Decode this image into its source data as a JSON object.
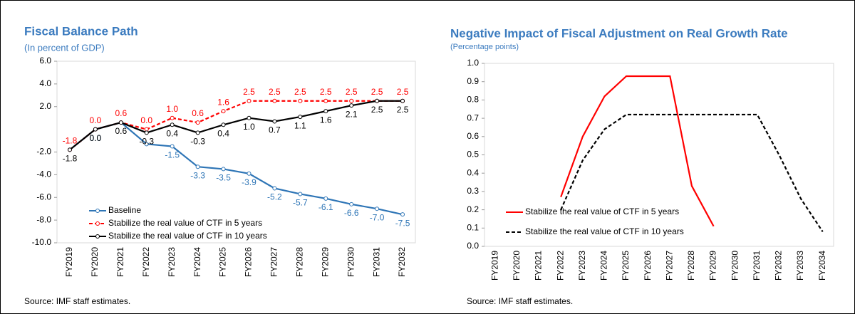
{
  "chart_data": [
    {
      "type": "line",
      "title": "Fiscal Balance Path",
      "subtitle": "(In percent of GDP)",
      "note": "Source: IMF staff estimates.",
      "categories": [
        "FY2019",
        "FY2020",
        "FY2021",
        "FY2022",
        "FY2023",
        "FY2024",
        "FY2025",
        "FY2026",
        "FY2027",
        "FY2028",
        "FY2029",
        "FY2030",
        "FY2031",
        "FY2032"
      ],
      "series": [
        {
          "name": "Baseline",
          "color": "#2e75b6",
          "dash": "solid",
          "marker": true,
          "values": [
            -1.8,
            0.0,
            0.6,
            -1.3,
            -1.5,
            -3.3,
            -3.5,
            -3.9,
            -5.2,
            -5.7,
            -6.1,
            -6.6,
            -7.0,
            -7.5
          ],
          "value_labels": [
            null,
            "0.0",
            null,
            null,
            "-1.5",
            "-3.3",
            "-3.5",
            "-3.9",
            "-5.2",
            "-5.7",
            "-6.1",
            "-6.6",
            "-7.0",
            "-7.5"
          ]
        },
        {
          "name": "Stabilize the real value of CTF in 5 years",
          "color": "#ff0000",
          "dash": "dashed",
          "marker": true,
          "values": [
            -1.8,
            0.0,
            0.6,
            0.0,
            1.0,
            0.6,
            1.6,
            2.5,
            2.5,
            2.5,
            2.5,
            2.5,
            2.5,
            2.5
          ],
          "value_labels": [
            "-1.8",
            "0.0",
            "0.6",
            "0.0",
            "1.0",
            "0.6",
            "1.6",
            "2.5",
            "2.5",
            "2.5",
            "2.5",
            "2.5",
            "2.5",
            "2.5"
          ]
        },
        {
          "name": "Stabilize the real value of CTF in 10 years",
          "color": "#000000",
          "dash": "solid",
          "marker": true,
          "values": [
            -1.8,
            0.0,
            0.6,
            -0.3,
            0.4,
            -0.3,
            0.4,
            1.0,
            0.7,
            1.1,
            1.6,
            2.1,
            2.5,
            2.5
          ],
          "value_labels": [
            "-1.8",
            "0.0",
            "0.6",
            "-0.3",
            "0.4",
            "-0.3",
            "0.4",
            "1.0",
            "0.7",
            "1.1",
            "1.6",
            "2.1",
            "2.5",
            "2.5"
          ]
        }
      ],
      "ylim": [
        -10,
        6
      ],
      "yticks": [
        {
          "value": -10,
          "label": "-10.0"
        },
        {
          "value": -8,
          "label": "-8.0"
        },
        {
          "value": -6,
          "label": "-6.0"
        },
        {
          "value": -4,
          "label": "-4.0"
        },
        {
          "value": -2,
          "label": "-2.0"
        },
        {
          "value": 2,
          "label": "2.0"
        },
        {
          "value": 4,
          "label": "4.0"
        },
        {
          "value": 6,
          "label": "6.0"
        }
      ],
      "legend": "lower left",
      "grid": false
    },
    {
      "type": "line",
      "title": "Negative Impact of Fiscal Adjustment on Real Growth Rate",
      "subtitle": "(Percentage points)",
      "note": "Source: IMF staff estimates.",
      "categories": [
        "FY2019",
        "FY2020",
        "FY2021",
        "FY2022",
        "FY2023",
        "FY2024",
        "FY2025",
        "FY2026",
        "FY2027",
        "FY2028",
        "FY2029",
        "FY2030",
        "FY2031",
        "FY2032",
        "FY2033",
        "FY2034"
      ],
      "series": [
        {
          "name": "Stabilize the real value of CTF in 5 years",
          "color": "#ff0000",
          "dash": "solid",
          "marker": false,
          "values": [
            null,
            null,
            null,
            0.27,
            0.6,
            0.82,
            0.93,
            0.93,
            0.93,
            0.33,
            0.11,
            null,
            null,
            null,
            null,
            null
          ]
        },
        {
          "name": "Stabilize the real value of CTF in 10 years",
          "color": "#000000",
          "dash": "dashed",
          "marker": false,
          "values": [
            null,
            null,
            null,
            0.2,
            0.47,
            0.64,
            0.72,
            0.72,
            0.72,
            0.72,
            0.72,
            0.72,
            0.72,
            0.5,
            0.26,
            0.08
          ]
        }
      ],
      "ylim": [
        0,
        1
      ],
      "yticks": [
        {
          "value": 0,
          "label": "0.0"
        },
        0.1,
        0.2,
        0.3,
        0.4,
        0.5,
        0.6,
        0.7,
        0.8,
        0.9,
        {
          "value": 1,
          "label": "1.0"
        }
      ],
      "legend": "lower left",
      "grid": false
    }
  ]
}
